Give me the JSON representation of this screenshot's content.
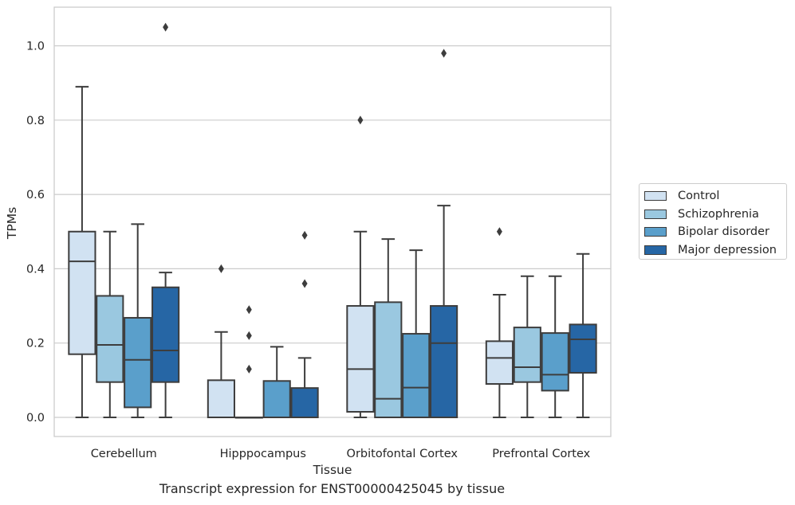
{
  "chart_data": {
    "type": "boxplot",
    "title": "Transcript expression for ENST00000425045 by tissue",
    "xlabel": "Tissue",
    "ylabel": "TPMs",
    "ylim": [
      -0.05,
      1.1
    ],
    "yticks": [
      "0.0",
      "0.2",
      "0.4",
      "0.6",
      "0.8",
      "1.0"
    ],
    "ytick_values": [
      0.0,
      0.2,
      0.4,
      0.6,
      0.8,
      1.0
    ],
    "grid": "horizontal",
    "legend_position": "right",
    "categories": [
      "Cerebellum",
      "Hipppocampus",
      "Orbitofontal Cortex",
      "Prefrontal Cortex"
    ],
    "series": [
      {
        "name": "Control",
        "color": "#d1e2f2",
        "boxes": [
          {
            "whislo": 0.0,
            "q1": 0.17,
            "med": 0.42,
            "q3": 0.5,
            "whishi": 0.89,
            "fliers": []
          },
          {
            "whislo": 0.0,
            "q1": 0.0,
            "med": 0.0,
            "q3": 0.1,
            "whishi": 0.23,
            "fliers": [
              0.4
            ]
          },
          {
            "whislo": 0.0,
            "q1": 0.015,
            "med": 0.13,
            "q3": 0.3,
            "whishi": 0.5,
            "fliers": [
              0.8
            ]
          },
          {
            "whislo": 0.0,
            "q1": 0.09,
            "med": 0.16,
            "q3": 0.205,
            "whishi": 0.33,
            "fliers": [
              0.5
            ]
          }
        ]
      },
      {
        "name": "Schizophrenia",
        "color": "#9ac8e0",
        "boxes": [
          {
            "whislo": 0.0,
            "q1": 0.095,
            "med": 0.195,
            "q3": 0.327,
            "whishi": 0.5,
            "fliers": []
          },
          {
            "whislo": 0.0,
            "q1": 0.0,
            "med": 0.0,
            "q3": 0.0,
            "whishi": 0.0,
            "fliers": [
              0.13,
              0.22,
              0.29
            ]
          },
          {
            "whislo": 0.0,
            "q1": 0.0,
            "med": 0.05,
            "q3": 0.31,
            "whishi": 0.48,
            "fliers": []
          },
          {
            "whislo": 0.0,
            "q1": 0.095,
            "med": 0.135,
            "q3": 0.242,
            "whishi": 0.38,
            "fliers": []
          }
        ]
      },
      {
        "name": "Bipolar disorder",
        "color": "#5a9fcb",
        "boxes": [
          {
            "whislo": 0.0,
            "q1": 0.027,
            "med": 0.155,
            "q3": 0.268,
            "whishi": 0.52,
            "fliers": []
          },
          {
            "whislo": 0.0,
            "q1": 0.0,
            "med": 0.0,
            "q3": 0.098,
            "whishi": 0.19,
            "fliers": []
          },
          {
            "whislo": 0.0,
            "q1": 0.0,
            "med": 0.08,
            "q3": 0.225,
            "whishi": 0.45,
            "fliers": []
          },
          {
            "whislo": 0.0,
            "q1": 0.072,
            "med": 0.115,
            "q3": 0.227,
            "whishi": 0.38,
            "fliers": []
          }
        ]
      },
      {
        "name": "Major depression",
        "color": "#2666a5",
        "boxes": [
          {
            "whislo": 0.0,
            "q1": 0.095,
            "med": 0.18,
            "q3": 0.35,
            "whishi": 0.39,
            "fliers": [
              1.05
            ]
          },
          {
            "whislo": 0.0,
            "q1": 0.0,
            "med": 0.0,
            "q3": 0.079,
            "whishi": 0.16,
            "fliers": [
              0.36,
              0.49
            ]
          },
          {
            "whislo": 0.0,
            "q1": 0.0,
            "med": 0.2,
            "q3": 0.3,
            "whishi": 0.57,
            "fliers": [
              0.98
            ]
          },
          {
            "whislo": 0.0,
            "q1": 0.12,
            "med": 0.21,
            "q3": 0.25,
            "whishi": 0.44,
            "fliers": []
          }
        ]
      }
    ]
  }
}
